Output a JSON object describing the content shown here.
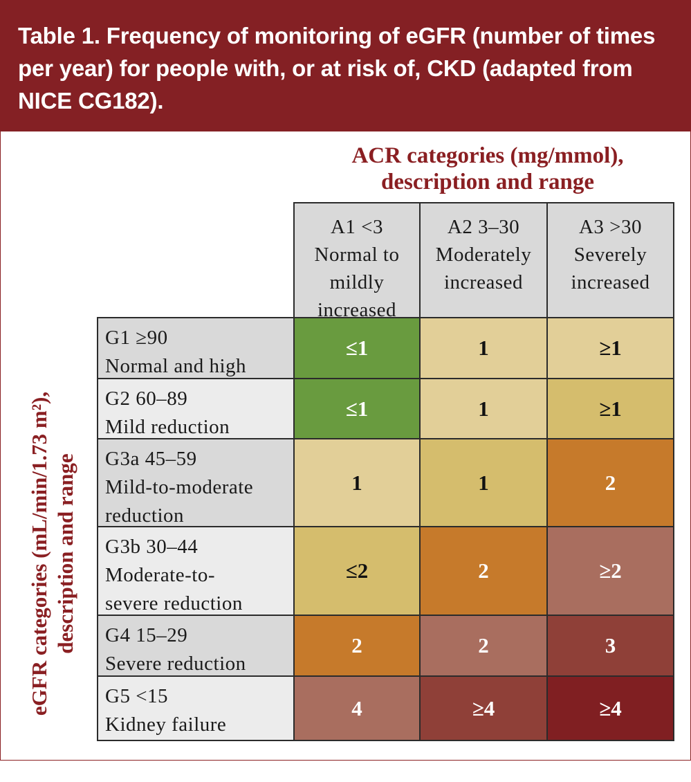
{
  "title": "Table 1. Frequency of monitoring of eGFR (number of times per year) for people with, or at risk of, CKD (adapted from NICE CG182).",
  "acr_heading": {
    "line1": "ACR categories (mg/mmol),",
    "line2": "description and range"
  },
  "egfr_heading": {
    "line1": "eGFR categories (mL/min/1.73 m²),",
    "line2": "description and range"
  },
  "columns": [
    {
      "line1": "A1 <3",
      "line2": "Normal to",
      "line3": "mildly",
      "line4": "increased"
    },
    {
      "line1": "A2 3–30",
      "line2": "Moderately",
      "line3": "increased",
      "line4": ""
    },
    {
      "line1": "A3 >30",
      "line2": "Severely",
      "line3": "increased",
      "line4": ""
    }
  ],
  "rows": [
    {
      "line1": "G1 ≥90",
      "line2": "Normal and high",
      "line3": "",
      "values": [
        "≤1",
        "1",
        "≥1"
      ]
    },
    {
      "line1": "G2 60–89",
      "line2": "Mild reduction",
      "line3": "",
      "values": [
        "≤1",
        "1",
        "≥1"
      ]
    },
    {
      "line1": "G3a 45–59",
      "line2": "Mild-to-moderate",
      "line3": "reduction",
      "values": [
        "1",
        "1",
        "2"
      ]
    },
    {
      "line1": "G3b 30–44",
      "line2": "Moderate-to-",
      "line3": "severe reduction",
      "values": [
        "≤2",
        "2",
        "≥2"
      ]
    },
    {
      "line1": "G4 15–29",
      "line2": "Severe reduction",
      "line3": "",
      "values": [
        "2",
        "2",
        "3"
      ]
    },
    {
      "line1": "G5 <15",
      "line2": "Kidney failure",
      "line3": "",
      "values": [
        "4",
        "≥4",
        "≥4"
      ]
    }
  ],
  "colors": {
    "title_bar": "#842024",
    "heading_text": "#8a1f22",
    "header_dark_gray": "#d9d9d9",
    "header_light_gray": "#ececec",
    "green": "#699b3f",
    "beige": "#e2cf98",
    "tan": "#d5bd6d",
    "orange": "#c67a2b",
    "rose": "#a96e5f",
    "brown": "#8f4038",
    "maroon": "#801f22"
  },
  "cell_colors": [
    [
      "green",
      "beige",
      "beige"
    ],
    [
      "green",
      "beige",
      "tan"
    ],
    [
      "beige",
      "tan",
      "orange"
    ],
    [
      "tan",
      "orange",
      "rose"
    ],
    [
      "orange",
      "rose",
      "brown"
    ],
    [
      "rose",
      "brown",
      "maroon"
    ]
  ]
}
